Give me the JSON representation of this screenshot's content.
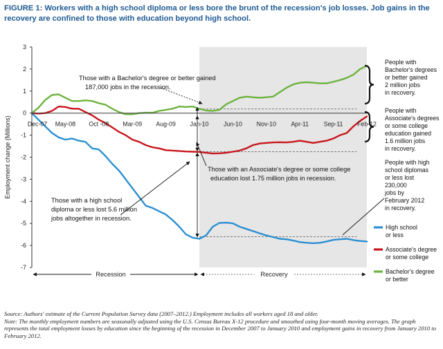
{
  "figure": {
    "label": "FIGURE 1:",
    "title": "Workers with a high school diploma or less bore the brunt of the recession's job losses. Job gains in the recovery are confined to those with education beyond high school."
  },
  "chart_data": {
    "type": "line",
    "ylabel": "Employment change (Millions)",
    "ylim": [
      -7,
      3
    ],
    "yticks": [
      3,
      2,
      1,
      0,
      -1,
      -2,
      -3,
      -4,
      -5,
      -6,
      -7
    ],
    "x_tick_labels": [
      "Dec-07",
      "May-08",
      "Oct -08",
      "Mar-09",
      "Aug-09",
      "Jan-10",
      "Jun-10",
      "Nov-10",
      "Apr-11",
      "Sep-11",
      "Feb-12"
    ],
    "x_months": 50,
    "recovery_start_month": 25,
    "colors": {
      "hs": "#2a8fd1",
      "assoc": "#c8151b",
      "ba": "#6cb33f",
      "shade": "#e6e6e6"
    },
    "series": [
      {
        "key": "hs",
        "name": "High school or less",
        "values": [
          0,
          -0.3,
          -0.6,
          -0.9,
          -1.1,
          -1.2,
          -1.15,
          -1.25,
          -1.3,
          -1.6,
          -1.65,
          -1.95,
          -2.3,
          -2.6,
          -3.0,
          -3.4,
          -3.8,
          -4.2,
          -4.3,
          -4.45,
          -4.6,
          -4.85,
          -5.15,
          -5.5,
          -5.65,
          -5.7,
          -5.55,
          -5.15,
          -4.98,
          -4.97,
          -5.0,
          -5.15,
          -5.25,
          -5.35,
          -5.45,
          -5.55,
          -5.62,
          -5.7,
          -5.72,
          -5.78,
          -5.85,
          -5.88,
          -5.9,
          -5.88,
          -5.82,
          -5.75,
          -5.72,
          -5.7,
          -5.76,
          -5.8,
          -5.82
        ]
      },
      {
        "key": "assoc",
        "name": "Associate's degree or some college",
        "values": [
          0,
          -0.02,
          0,
          0.1,
          0.3,
          0.28,
          0.2,
          0.2,
          0.05,
          -0.1,
          -0.3,
          -0.45,
          -0.65,
          -0.85,
          -1.0,
          -1.2,
          -1.3,
          -1.45,
          -1.55,
          -1.6,
          -1.68,
          -1.7,
          -1.72,
          -1.74,
          -1.75,
          -1.76,
          -1.8,
          -1.83,
          -1.82,
          -1.8,
          -1.75,
          -1.7,
          -1.6,
          -1.45,
          -1.38,
          -1.35,
          -1.33,
          -1.32,
          -1.33,
          -1.3,
          -1.25,
          -1.3,
          -1.35,
          -1.3,
          -1.25,
          -1.15,
          -1.0,
          -0.9,
          -0.6,
          -0.35,
          -0.15
        ]
      },
      {
        "key": "ba",
        "name": "Bachelor's degree or better",
        "values": [
          0,
          0.25,
          0.6,
          0.82,
          0.85,
          0.7,
          0.55,
          0.55,
          0.58,
          0.55,
          0.45,
          0.38,
          0.2,
          0.05,
          -0.05,
          -0.05,
          0.0,
          0.02,
          0.02,
          0.1,
          0.15,
          0.2,
          0.3,
          0.28,
          0.3,
          0.2,
          0.12,
          0.1,
          0.15,
          0.4,
          0.55,
          0.7,
          0.75,
          0.72,
          0.7,
          0.72,
          0.75,
          0.95,
          1.15,
          1.3,
          1.38,
          1.4,
          1.38,
          1.35,
          1.35,
          1.42,
          1.5,
          1.6,
          1.75,
          2.0,
          2.15
        ]
      }
    ],
    "reference_levels": [
      0.187,
      -1.75,
      -5.6
    ],
    "annotations": [
      "Those with a Bachelor's degree or better gained",
      "187,000 jobs in the recession.",
      "Those with an Associate's degree or some college",
      "education lost 1.75 million jobs in recession.",
      "Those with a high school",
      "diploma or less lost 5.6 million",
      "jobs altogether in recession."
    ],
    "side_notes": {
      "ba": [
        "People with",
        "Bachelor's degrees",
        "or better gained",
        "2 million jobs",
        "in recovery."
      ],
      "assoc": [
        "People with",
        "Associate's degrees",
        "or some college",
        "education gained",
        "1.6 million jobs",
        "in recovery."
      ],
      "hs": [
        "People with high",
        "school diplomas",
        "or less lost",
        "230,000",
        "jobs by",
        "February 2012",
        "in recovery."
      ]
    },
    "legend": [
      {
        "key": "hs",
        "lines": [
          "High school",
          "or less"
        ]
      },
      {
        "key": "assoc",
        "lines": [
          "Associate's degree",
          "or some college"
        ]
      },
      {
        "key": "ba",
        "lines": [
          "Bachelor's degree",
          "or better"
        ]
      }
    ],
    "phases": {
      "recession": "Recession",
      "recovery": "Recovery"
    }
  },
  "footer": {
    "source": "Source: Authors' estimate of the Current Population Survey data (2007–2012.) Employment includes all workers aged 18 and older.",
    "note": "Note: The monthly employment numbers are seasonally adjusted using the U.S. Census Bureau X-12 procedure and smoothed using four-month moving averages. The graph represents the total employment losses by education since the beginning of the recession in December 2007 to January 2010 and employment gains in recovery from January 2010 to February 2012."
  }
}
